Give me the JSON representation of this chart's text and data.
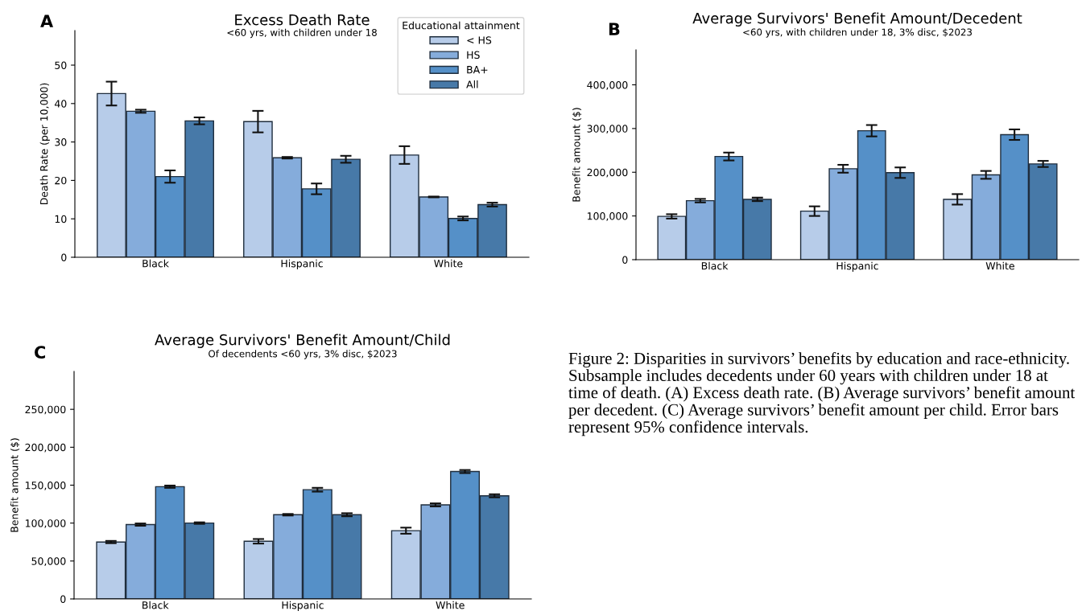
{
  "chart_data": [
    {
      "type": "bar",
      "title": "Excess Death Rate",
      "subtitle": "<60 yrs, with children under 18",
      "ylabel": "Death Rate (per 10,000)",
      "annotations": [
        "A"
      ],
      "categories": [
        "Black",
        "Hispanic",
        "White"
      ],
      "ylim": [
        0,
        59
      ],
      "yticks": [
        0,
        10,
        20,
        30,
        40,
        50
      ],
      "grid": false,
      "legend": "top right",
      "legend_title": "Educational attainment",
      "series": [
        {
          "name": "< HS",
          "color": "#b7cce9",
          "values": [
            42.6,
            35.3,
            26.6
          ],
          "errors": [
            3.1,
            2.8,
            2.3
          ]
        },
        {
          "name": "HS",
          "color": "#85acdb",
          "values": [
            38.0,
            25.9,
            15.7
          ],
          "errors": [
            0.4,
            0.2,
            0.1
          ]
        },
        {
          "name": "BA+",
          "color": "#5590c8",
          "values": [
            21.0,
            17.8,
            10.1
          ],
          "errors": [
            1.6,
            1.4,
            0.5
          ]
        },
        {
          "name": "All",
          "color": "#4779a8",
          "values": [
            35.5,
            25.5,
            13.7
          ],
          "errors": [
            0.9,
            0.9,
            0.5
          ]
        }
      ]
    },
    {
      "type": "bar",
      "title": "Average Survivors' Benefit Amount/Decedent",
      "subtitle": "<60 yrs, with children under 18, 3% disc, $2023",
      "ylabel": "Benefit amount ($)",
      "annotations": [
        "B"
      ],
      "categories": [
        "Black",
        "Hispanic",
        "White"
      ],
      "ylim": [
        0,
        480000
      ],
      "yticks": [
        0,
        {
          "value": 100000,
          "label": "100,000"
        },
        {
          "value": 200000,
          "label": "200,000"
        },
        {
          "value": 300000,
          "label": "300,000"
        },
        {
          "value": 400000,
          "label": "400,000"
        }
      ],
      "grid": false,
      "series": [
        {
          "color": "#b7cce9",
          "values": [
            99000,
            111000,
            138000
          ],
          "errors": [
            5000,
            11000,
            12000
          ]
        },
        {
          "color": "#85acdb",
          "values": [
            135000,
            208000,
            194000
          ],
          "errors": [
            4000,
            9000,
            9000
          ]
        },
        {
          "color": "#5590c8",
          "values": [
            236000,
            295000,
            286000
          ],
          "errors": [
            9000,
            13000,
            12000
          ]
        },
        {
          "color": "#4779a8",
          "values": [
            138000,
            199000,
            219000
          ],
          "errors": [
            4000,
            12000,
            7000
          ]
        }
      ]
    },
    {
      "type": "bar",
      "title": "Average Survivors' Benefit Amount/Child",
      "subtitle": "Of decendents <60 yrs, 3% disc, $2023",
      "ylabel": "Benefit amount ($)",
      "annotations": [
        "C"
      ],
      "categories": [
        "Black",
        "Hispanic",
        "White"
      ],
      "ylim": [
        0,
        300000
      ],
      "yticks": [
        0,
        {
          "value": 50000,
          "label": "50,000"
        },
        {
          "value": 100000,
          "label": "100,000"
        },
        {
          "value": 150000,
          "label": "150,000"
        },
        {
          "value": 200000,
          "label": "200,000"
        },
        {
          "value": 250000,
          "label": "250,000"
        }
      ],
      "grid": false,
      "series": [
        {
          "color": "#b7cce9",
          "values": [
            75000,
            76000,
            90000
          ],
          "errors": [
            1500,
            3000,
            4000
          ]
        },
        {
          "color": "#85acdb",
          "values": [
            98000,
            111000,
            124000
          ],
          "errors": [
            1500,
            1000,
            2000
          ]
        },
        {
          "color": "#5590c8",
          "values": [
            148000,
            144000,
            168000
          ],
          "errors": [
            1500,
            2500,
            2000
          ]
        },
        {
          "color": "#4779a8",
          "values": [
            100000,
            111000,
            136000
          ],
          "errors": [
            1000,
            2000,
            2000
          ]
        }
      ]
    },
    {
      "type": "other",
      "annotations": [
        "Figure 2: Disparities in survivors’ benefits by education and race-ethnicity. Subsample includes decedents under 60 years with children under 18 at time of death. (A) Excess death rate. (B) Average survivors’ benefit amount per decedent. (C) Average survivors’ benefit amount per child. Error bars represent 95% confidence intervals."
      ]
    }
  ]
}
